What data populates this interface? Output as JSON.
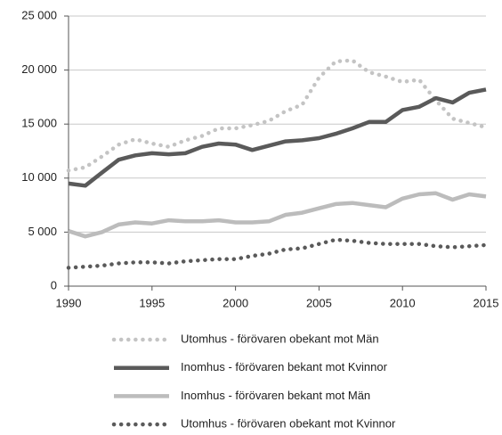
{
  "chart_data": {
    "type": "line",
    "x": [
      1990,
      1991,
      1992,
      1993,
      1994,
      1995,
      1996,
      1997,
      1998,
      1999,
      2000,
      2001,
      2002,
      2003,
      2004,
      2005,
      2006,
      2007,
      2008,
      2009,
      2010,
      2011,
      2012,
      2013,
      2014,
      2015
    ],
    "xlim": [
      1990,
      2015
    ],
    "xticks": [
      1990,
      1995,
      2000,
      2005,
      2010,
      2015
    ],
    "ylim": [
      0,
      25000
    ],
    "yticks": [
      0,
      {
        "value": 5000,
        "label": "5 000"
      },
      {
        "value": 10000,
        "label": "10 000"
      },
      {
        "value": 15000,
        "label": "15 000"
      },
      {
        "value": 20000,
        "label": "20 000"
      },
      {
        "value": 25000,
        "label": "25 000"
      }
    ],
    "grid": true,
    "legend": "bottom",
    "series": [
      {
        "name": "Utomhus - förövaren obekant mot Män",
        "color": "#c4c4c4",
        "style": "dotted",
        "values": [
          10700,
          11000,
          12000,
          13100,
          13600,
          13200,
          12900,
          13500,
          13900,
          14600,
          14600,
          14900,
          15300,
          16200,
          16800,
          19300,
          20800,
          20900,
          19800,
          19400,
          18900,
          19100,
          17200,
          15500,
          15100,
          14700
        ]
      },
      {
        "name": "Inomhus - förövaren bekant mot Kvinnor",
        "color": "#5a5a5a",
        "style": "solid",
        "values": [
          9500,
          9300,
          10500,
          11700,
          12100,
          12300,
          12200,
          12300,
          12900,
          13200,
          13100,
          12600,
          13000,
          13400,
          13500,
          13700,
          14100,
          14600,
          15200,
          15200,
          16300,
          16600,
          17400,
          17000,
          17900,
          18200
        ]
      },
      {
        "name": "Inomhus - förövaren bekant mot Män",
        "color": "#bcbcbc",
        "style": "solid",
        "values": [
          5100,
          4600,
          5000,
          5700,
          5900,
          5800,
          6100,
          6000,
          6000,
          6100,
          5900,
          5900,
          6000,
          6600,
          6800,
          7200,
          7600,
          7700,
          7500,
          7300,
          8100,
          8500,
          8600,
          8000,
          8500,
          8300
        ]
      },
      {
        "name": "Utomhus - förövaren obekant mot Kvinnor",
        "color": "#5a5a5a",
        "style": "dotted",
        "values": [
          1700,
          1800,
          1900,
          2100,
          2200,
          2200,
          2100,
          2300,
          2400,
          2500,
          2500,
          2800,
          3000,
          3400,
          3500,
          3900,
          4300,
          4200,
          4000,
          3900,
          3900,
          3900,
          3700,
          3600,
          3700,
          3800
        ]
      }
    ]
  }
}
